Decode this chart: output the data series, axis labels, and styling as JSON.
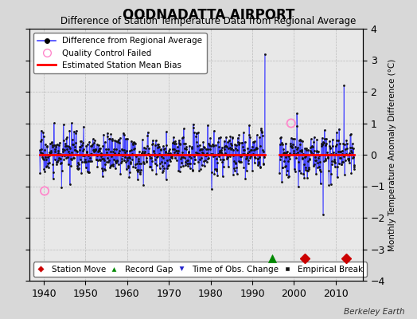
{
  "title": "OODNADATTA AIRPORT",
  "subtitle": "Difference of Station Temperature Data from Regional Average",
  "ylabel": "Monthly Temperature Anomaly Difference (°C)",
  "xlabel_years": [
    1940,
    1950,
    1960,
    1970,
    1980,
    1990,
    2000,
    2010
  ],
  "ylim": [
    -4,
    4
  ],
  "xlim": [
    1936.5,
    2016.5
  ],
  "seg1_start": 1939.0,
  "seg1_end": 1993.0,
  "seg2_start": 1996.5,
  "seg2_end": 2014.5,
  "bias1_value": 0.0,
  "bias2_value": 0.0,
  "line_color": "#4444ff",
  "dot_color": "#111111",
  "bias_color": "#ff0000",
  "qc_color": "#ff88cc",
  "station_move_color": "#cc0000",
  "record_gap_color": "#008800",
  "obs_change_color": "#2222cc",
  "empirical_break_color": "#111111",
  "bg_color": "#d8d8d8",
  "plot_bg_color": "#e8e8e8",
  "grid_color": "#bbbbbb",
  "seed": 17,
  "seg1_mean": 0.02,
  "seg1_std": 0.45,
  "seg2_mean": 0.02,
  "seg2_std": 0.45,
  "spike_1994_val": 3.2,
  "spike_2007_val": -1.9,
  "spike_2012_val": 2.2,
  "qc_fail_times": [
    1940.2,
    1999.3
  ],
  "qc_fail_vals": [
    -1.15,
    1.0
  ],
  "station_moves": [
    2002.5,
    2012.5
  ],
  "record_gaps": [
    1994.8
  ],
  "obs_changes": [],
  "empirical_breaks": [],
  "bottom_marker_y": -3.3
}
